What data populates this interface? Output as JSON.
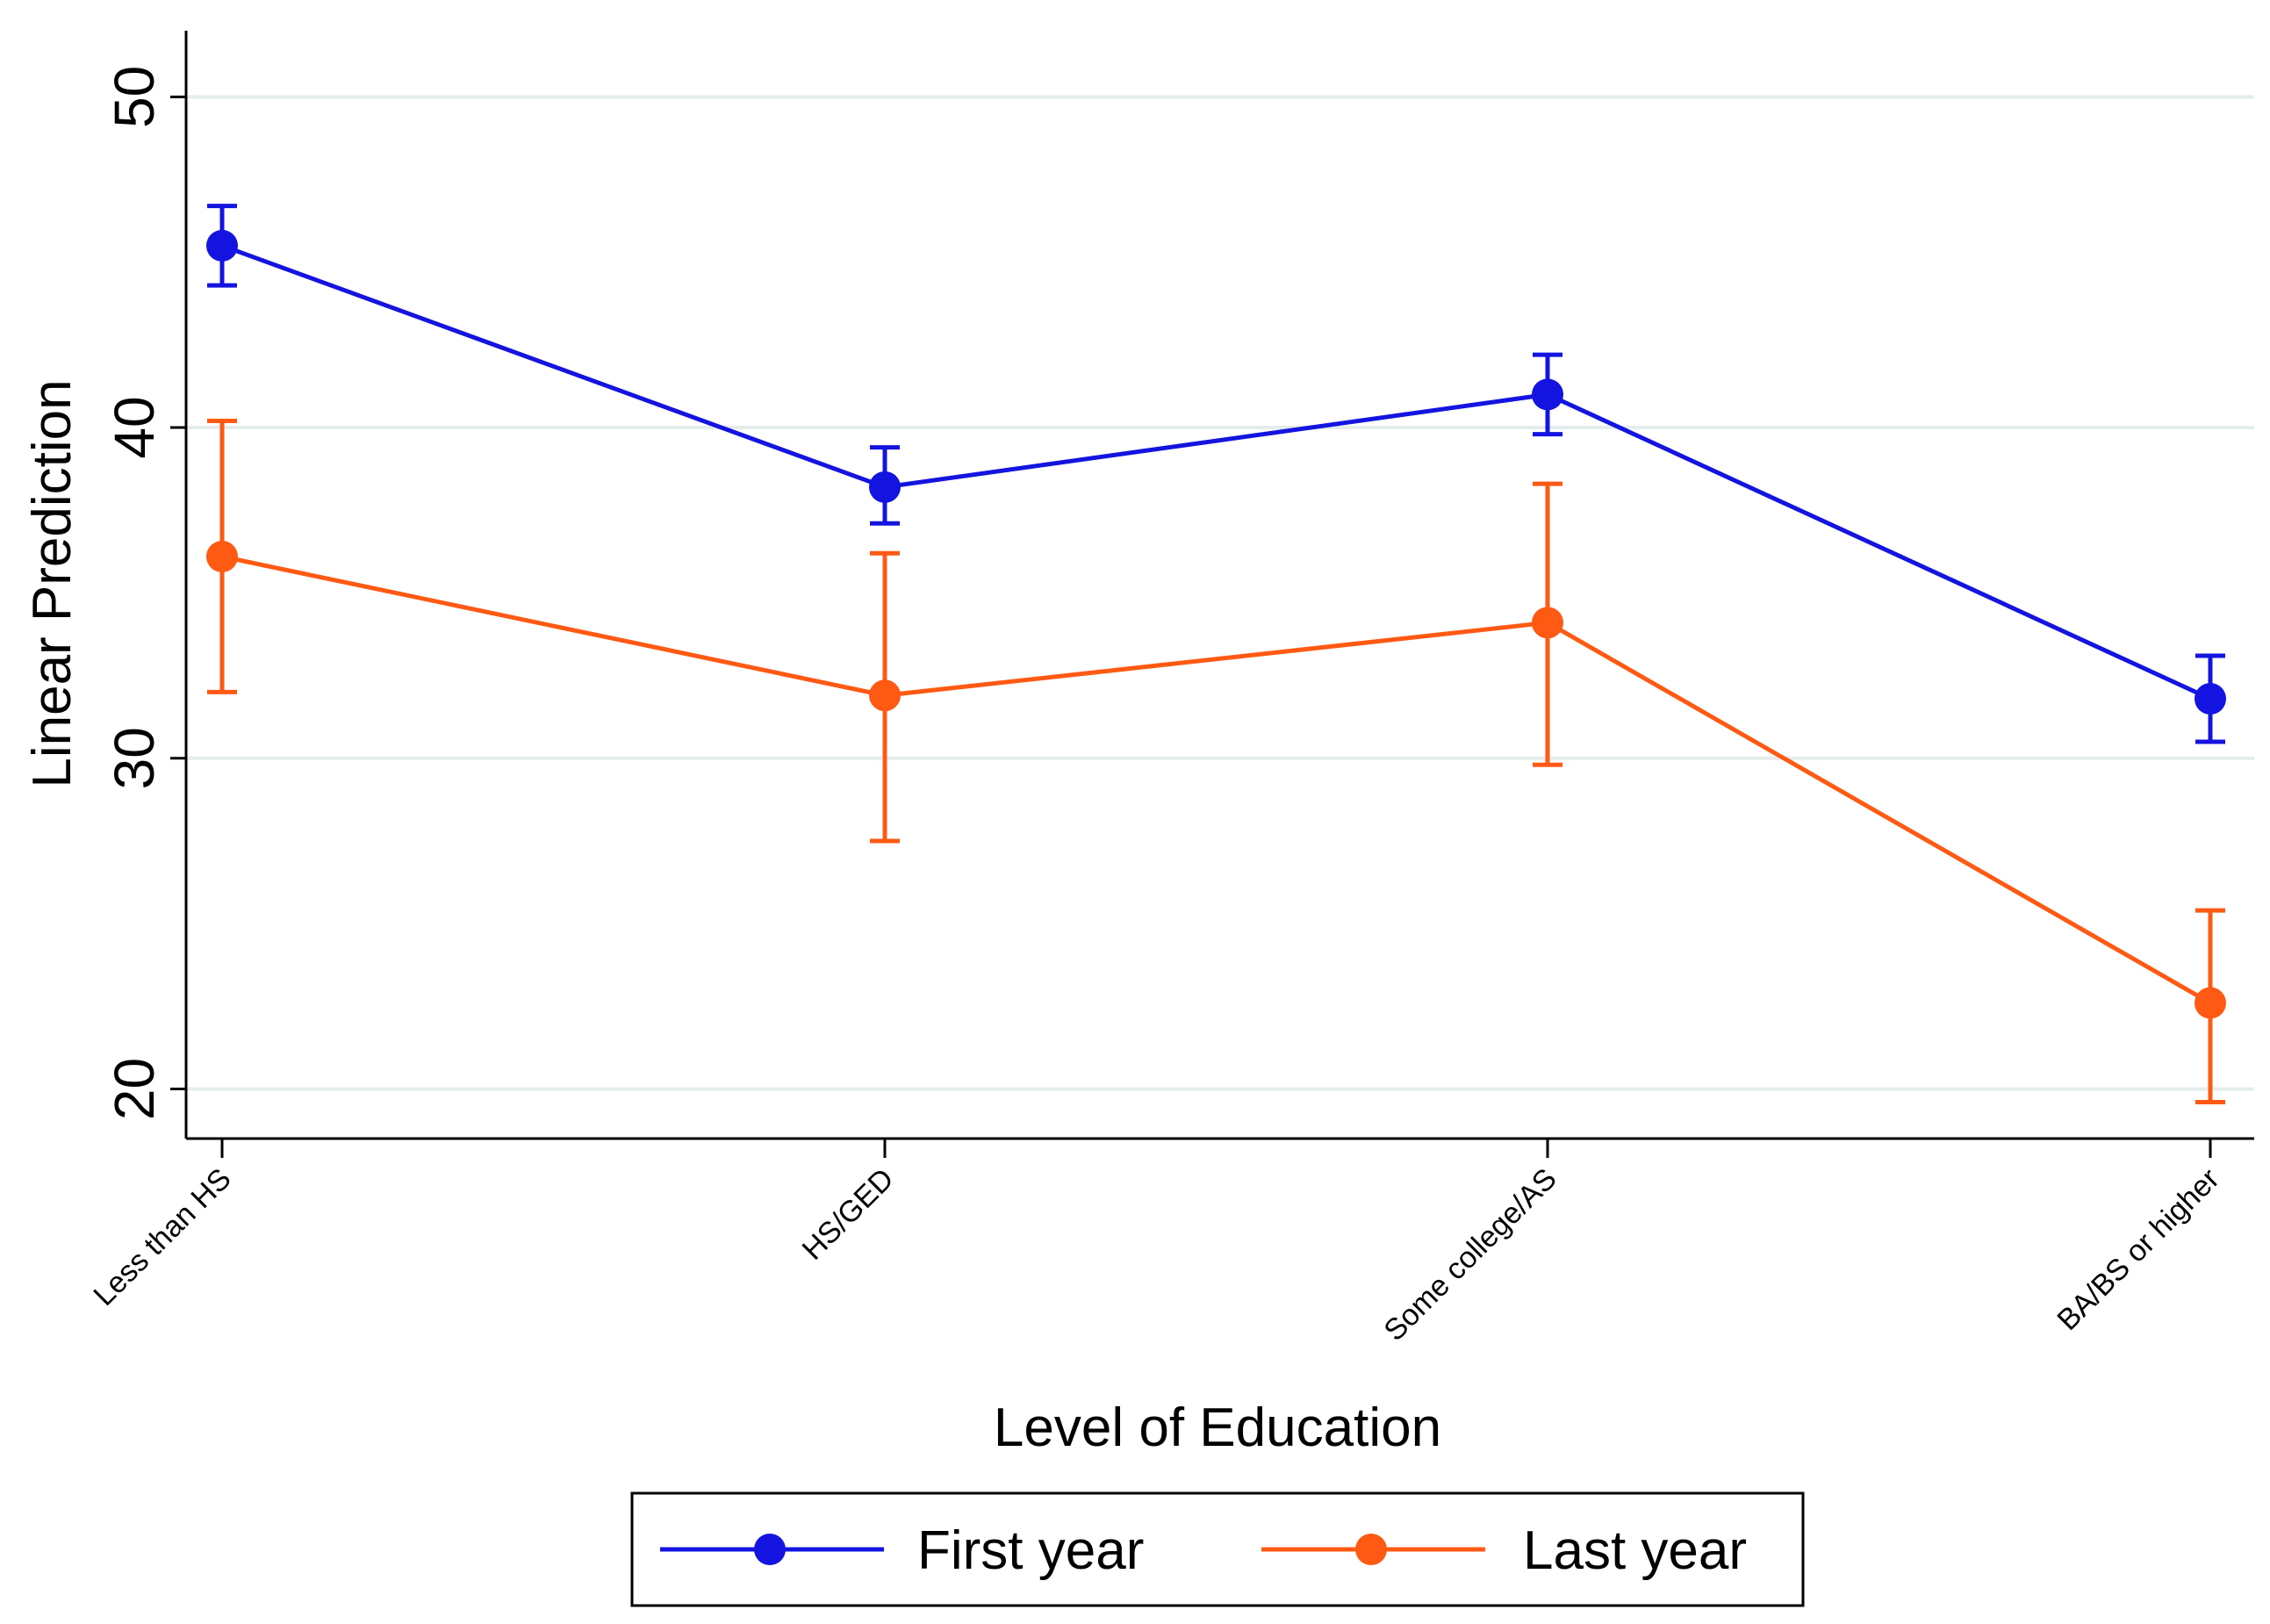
{
  "chart_data": {
    "type": "line",
    "title": "",
    "xlabel": "Level of Education",
    "ylabel": "Linear Prediction",
    "categories": [
      "Less than HS",
      "HS/GED",
      "Some college/AS",
      "BA/BS or higher"
    ],
    "ylim": [
      18.5,
      52
    ],
    "yticks": [
      20,
      30,
      40,
      50
    ],
    "ytick_labels": [
      "20",
      "30",
      "40",
      "50"
    ],
    "grid": true,
    "legend_position": "bottom-center",
    "series": [
      {
        "name": "First year",
        "color": "#1414e0",
        "values": [
          45.5,
          38.2,
          41.0,
          31.8
        ],
        "ci_low": [
          44.3,
          37.1,
          39.8,
          30.5
        ],
        "ci_high": [
          46.7,
          39.4,
          42.2,
          33.1
        ]
      },
      {
        "name": "Last year",
        "color": "#ff5a14",
        "values": [
          36.1,
          31.9,
          34.1,
          22.6
        ],
        "ci_low": [
          32.0,
          27.5,
          29.8,
          19.6
        ],
        "ci_high": [
          40.2,
          36.2,
          38.3,
          25.4
        ]
      }
    ]
  }
}
